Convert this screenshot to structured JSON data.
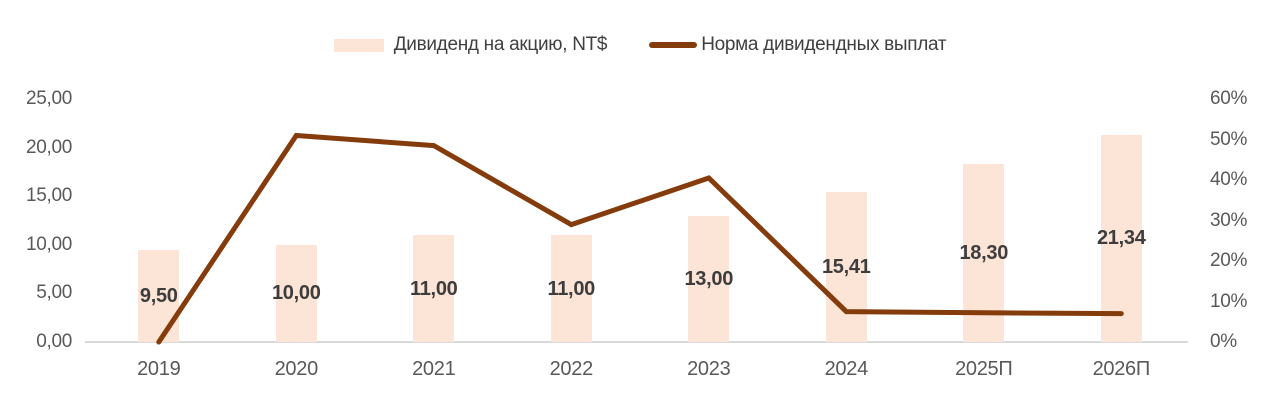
{
  "legend": {
    "bars_label": "Дивиденд на акцию, NT$",
    "line_label": "Норма дивидендных выплат"
  },
  "colors": {
    "bar_fill": "#fce4d6",
    "line": "#843c0c",
    "axis_text": "#595959",
    "data_label": "#3d3d3d",
    "baseline": "#d9d9d9"
  },
  "chart_data": {
    "type": "bar+line combo",
    "title": "",
    "categories": [
      "2019",
      "2020",
      "2021",
      "2022",
      "2023",
      "2024",
      "2025П",
      "2026П"
    ],
    "series": [
      {
        "name": "Дивиденд на акцию, NT$",
        "type": "bar",
        "axis": "left",
        "values": [
          9.5,
          10.0,
          11.0,
          11.0,
          13.0,
          15.41,
          18.3,
          21.34
        ],
        "labels": [
          "9,50",
          "10,00",
          "11,00",
          "11,00",
          "13,00",
          "15,41",
          "18,30",
          "21,34"
        ]
      },
      {
        "name": "Норма дивидендных выплат",
        "type": "line",
        "axis": "right",
        "values_pct": [
          0,
          51,
          48.5,
          29,
          40.5,
          7.5,
          7.2,
          7.0
        ]
      }
    ],
    "left_axis": {
      "min": 0,
      "max": 25,
      "ticks": [
        {
          "label": "25,00",
          "value": 25
        },
        {
          "label": "20,00",
          "value": 20
        },
        {
          "label": "15,00",
          "value": 15
        },
        {
          "label": "10,00",
          "value": 10
        },
        {
          "label": "5,00",
          "value": 5
        },
        {
          "label": "0,00",
          "value": 0
        }
      ]
    },
    "right_axis": {
      "min": 0,
      "max": 60,
      "ticks": [
        {
          "label": "60%",
          "value": 60
        },
        {
          "label": "50%",
          "value": 50
        },
        {
          "label": "40%",
          "value": 40
        },
        {
          "label": "30%",
          "value": 30
        },
        {
          "label": "20%",
          "value": 20
        },
        {
          "label": "10%",
          "value": 10
        },
        {
          "label": "0%",
          "value": 0
        }
      ]
    },
    "grid": false,
    "legend_position": "top"
  }
}
